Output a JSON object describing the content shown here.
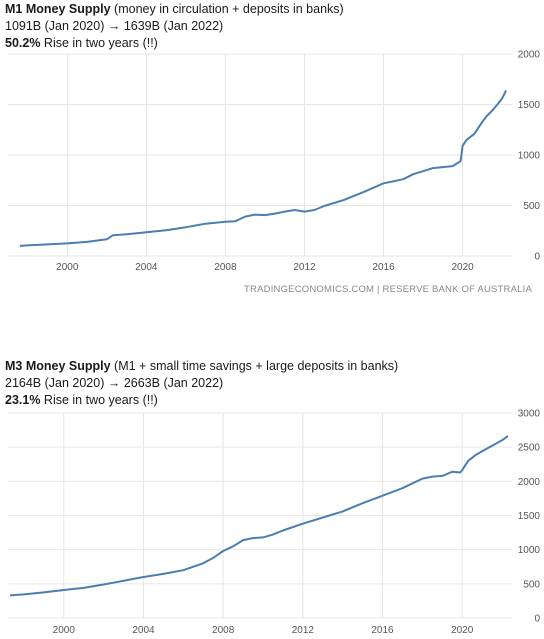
{
  "chart_data": [
    {
      "type": "line",
      "title_bold": "M1 Money Supply",
      "title_rest": " (money in circulation + deposits in banks)",
      "line2": "1091B (Jan 2020) → 1639B (Jan 2022)",
      "line3_bold": "50.2%",
      "line3_rest": " Rise in two years (!!)",
      "source": "TRADINGECONOMICS.COM | RESERVE BANK OF AUSTRALIA",
      "xlim": [
        1997,
        2022.5
      ],
      "ylim": [
        0,
        2000
      ],
      "x_ticks": [
        2000,
        2004,
        2008,
        2012,
        2016,
        2020
      ],
      "y_ticks": [
        0,
        500,
        1000,
        1500,
        2000
      ],
      "grid": true,
      "series": [
        {
          "x": [
            1997.6,
            1998,
            1999,
            2000,
            2001,
            2002,
            2002.3,
            2003,
            2004,
            2005,
            2006,
            2007,
            2008,
            2008.5,
            2009,
            2009.5,
            2010,
            2010.5,
            2011,
            2011.5,
            2012,
            2012.5,
            2013,
            2014,
            2015,
            2016,
            2016.5,
            2017,
            2017.5,
            2018,
            2018.5,
            2019,
            2019.5,
            2019.9,
            2020,
            2020.2,
            2020.6,
            2020.9,
            2021,
            2021.2,
            2021.5,
            2021.8,
            2022,
            2022.2
          ],
          "y": [
            100,
            105,
            115,
            125,
            140,
            165,
            205,
            215,
            235,
            255,
            285,
            320,
            340,
            345,
            390,
            410,
            405,
            420,
            440,
            455,
            440,
            455,
            495,
            555,
            635,
            720,
            740,
            760,
            810,
            840,
            870,
            880,
            890,
            940,
            1091,
            1150,
            1210,
            1300,
            1330,
            1380,
            1440,
            1510,
            1560,
            1639
          ]
        }
      ]
    },
    {
      "type": "line",
      "title_bold": "M3 Money Supply",
      "title_rest": "  (M1 + small time savings + large deposits in banks)",
      "line2": "2164B (Jan 2020) → 2663B (Jan 2022)",
      "line3_bold": "23.1%",
      "line3_rest": " Rise in two years (!!)",
      "source": "",
      "xlim": [
        1997.2,
        2022.5
      ],
      "ylim": [
        0,
        3000
      ],
      "x_ticks": [
        2000,
        2004,
        2008,
        2012,
        2016,
        2020
      ],
      "y_ticks": [
        0,
        500,
        1000,
        1500,
        2000,
        2500,
        3000
      ],
      "grid": true,
      "series": [
        {
          "x": [
            1997.3,
            1998,
            1999,
            2000,
            2001,
            2002,
            2003,
            2004,
            2005,
            2006,
            2007,
            2007.5,
            2008,
            2008.5,
            2009,
            2009.5,
            2010,
            2010.5,
            2011,
            2012,
            2013,
            2014,
            2015,
            2016,
            2017,
            2018,
            2018.5,
            2019,
            2019.5,
            2019.9,
            2020,
            2020.3,
            2020.7,
            2021,
            2021.5,
            2022,
            2022.3
          ],
          "y": [
            330,
            345,
            375,
            410,
            440,
            490,
            545,
            600,
            645,
            700,
            800,
            880,
            980,
            1050,
            1140,
            1170,
            1180,
            1220,
            1280,
            1380,
            1470,
            1560,
            1680,
            1790,
            1900,
            2040,
            2070,
            2080,
            2140,
            2130,
            2164,
            2300,
            2390,
            2440,
            2520,
            2600,
            2663
          ]
        }
      ]
    }
  ]
}
